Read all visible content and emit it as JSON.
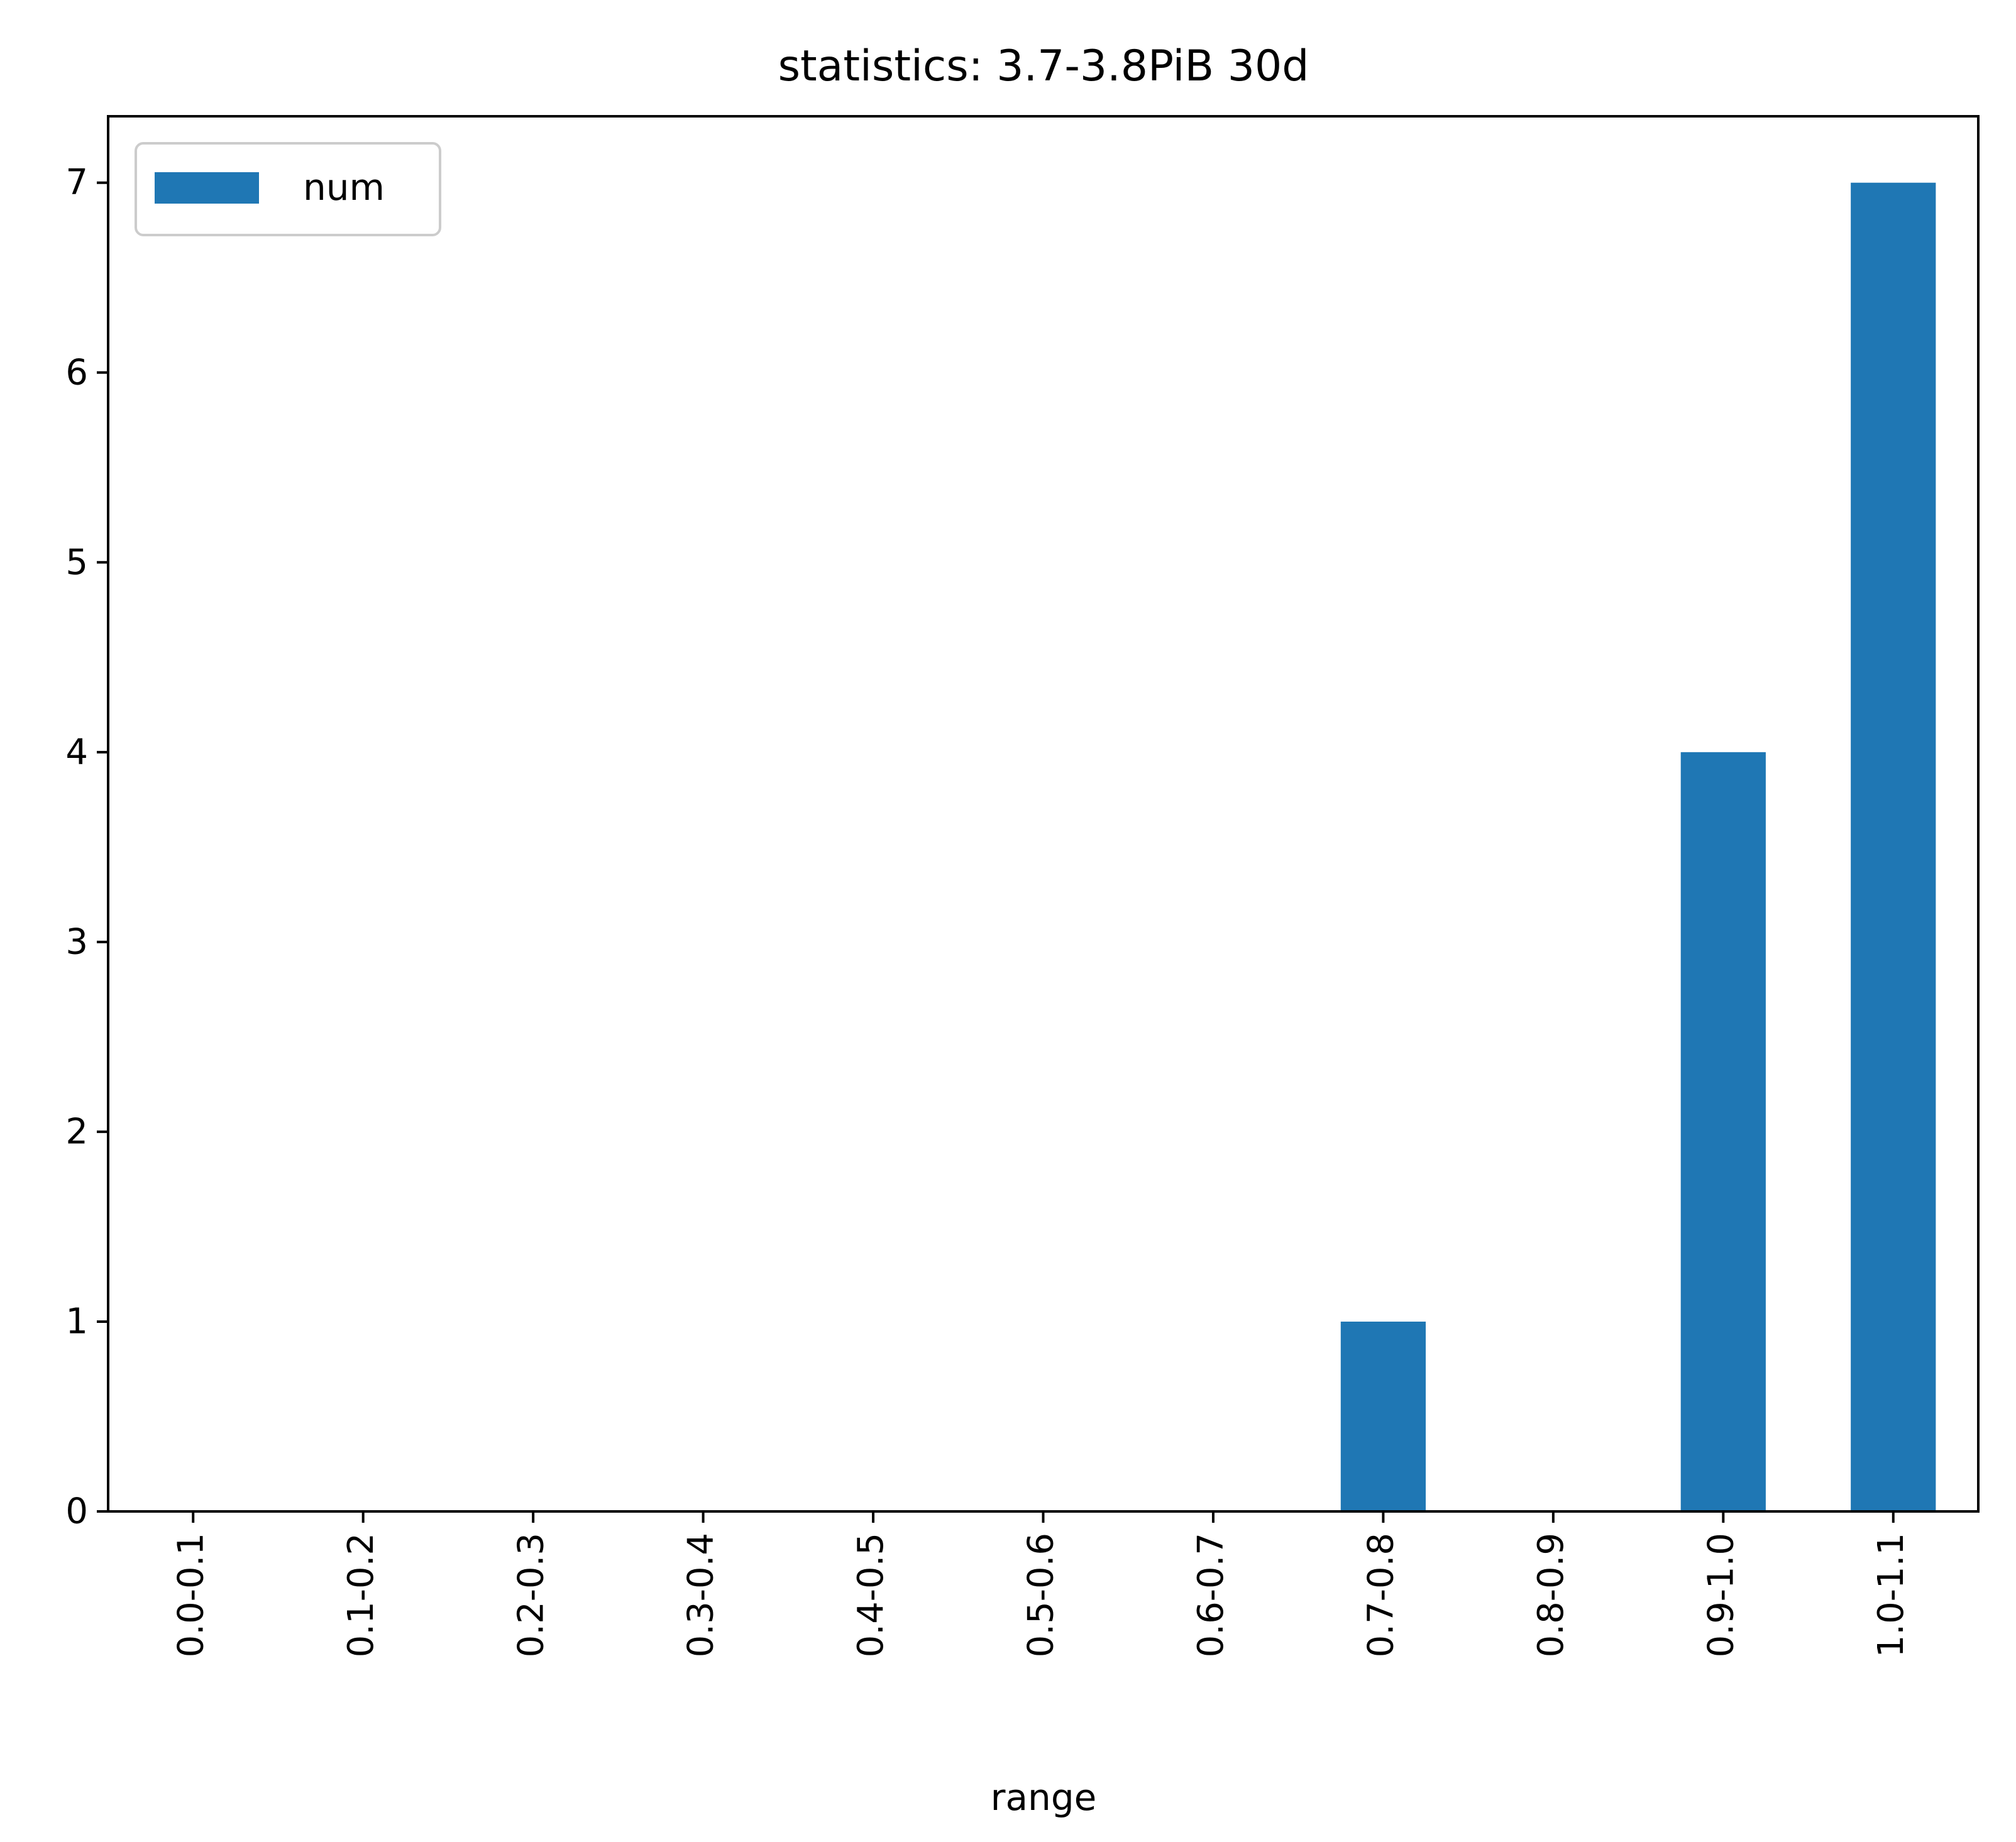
{
  "chart_data": {
    "type": "bar",
    "title": "statistics: 3.7-3.8PiB 30d",
    "xlabel": "range",
    "ylabel": "",
    "categories": [
      "0.0-0.1",
      "0.1-0.2",
      "0.2-0.3",
      "0.3-0.4",
      "0.4-0.5",
      "0.5-0.6",
      "0.6-0.7",
      "0.7-0.8",
      "0.8-0.9",
      "0.9-1.0",
      "1.0-1.1"
    ],
    "series": [
      {
        "name": "num",
        "values": [
          0,
          0,
          0,
          0,
          0,
          0,
          0,
          1,
          0,
          4,
          7
        ],
        "color": "#1f77b4"
      }
    ],
    "ylim": [
      0,
      7.35
    ],
    "yticks": [
      "0",
      "1",
      "2",
      "3",
      "4",
      "5",
      "6",
      "7"
    ],
    "grid": false,
    "legend": "top-left"
  }
}
